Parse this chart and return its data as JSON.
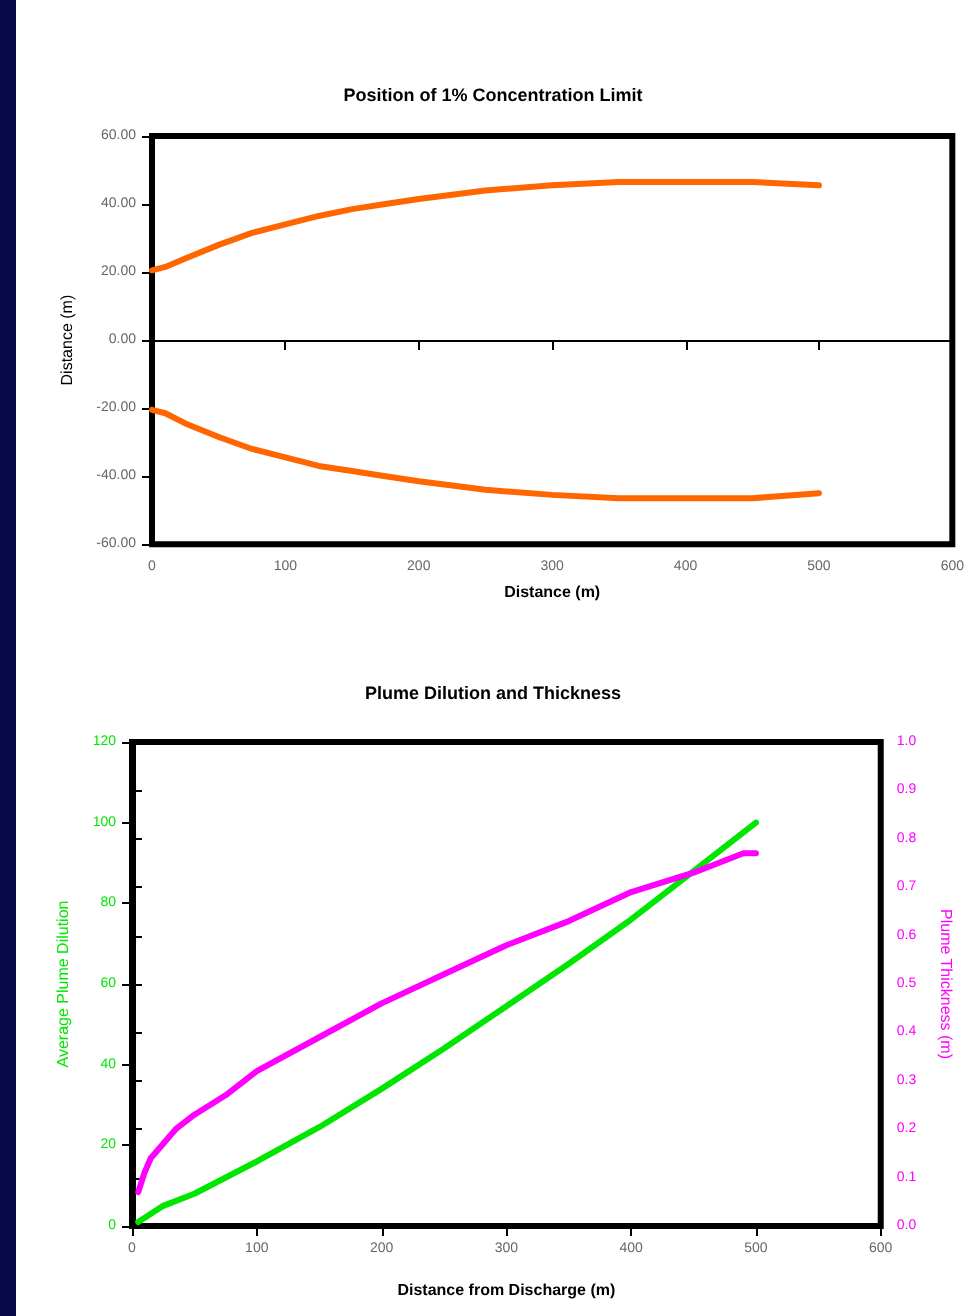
{
  "chart_data": [
    {
      "type": "line",
      "title": "Position of 1% Concentration Limit",
      "xlabel": "Distance (m)",
      "ylabel": "Distance (m)",
      "xlim": [
        0,
        600
      ],
      "xticks": [
        0,
        100,
        200,
        300,
        400,
        500,
        600
      ],
      "ylim": [
        -60,
        60
      ],
      "yticks": [
        {
          "value": -60,
          "label": "-60.00"
        },
        {
          "value": -40,
          "label": "-40.00"
        },
        {
          "value": -20,
          "label": "-20.00"
        },
        {
          "value": 0,
          "label": "0.00"
        },
        {
          "value": 20,
          "label": "20.00"
        },
        {
          "value": 40,
          "label": "40.00"
        },
        {
          "value": 60,
          "label": "60.00"
        }
      ],
      "line_style": "solid",
      "x": [
        0,
        10,
        25,
        50,
        75,
        100,
        125,
        150,
        175,
        200,
        250,
        300,
        350,
        400,
        450,
        500
      ],
      "series": [
        {
          "color": "#ff6600",
          "values": [
            20.5,
            21.5,
            24,
            28,
            31.5,
            34,
            36.5,
            38.5,
            40,
            41.5,
            44,
            45.5,
            46.5,
            46.5,
            46.5,
            45.5
          ]
        },
        {
          "color": "#ff6600",
          "values": [
            -20.5,
            -21.5,
            -24.5,
            -28.5,
            -32,
            -34.5,
            -37,
            -38.5,
            -40,
            -41.5,
            -44,
            -45.5,
            -46.5,
            -46.5,
            -46.5,
            -45
          ]
        }
      ]
    },
    {
      "type": "line",
      "title": "Plume Dilution and Thickness",
      "xlabel": "Distance from Discharge (m)",
      "ylabel": "Average Plume Dilution",
      "y2label": "Plume Thickness (m)",
      "xlim": [
        0,
        600
      ],
      "xticks": [
        0,
        100,
        200,
        300,
        400,
        500,
        600
      ],
      "ylim": [
        0,
        120
      ],
      "yticks": [
        0,
        20,
        40,
        60,
        80,
        100,
        120
      ],
      "y2lim": [
        0,
        1
      ],
      "y2ticks": [
        {
          "value": 0,
          "label": "0.0"
        },
        {
          "value": 0.1,
          "label": "0.1"
        },
        {
          "value": 0.2,
          "label": "0.2"
        },
        {
          "value": 0.3,
          "label": "0.3"
        },
        {
          "value": 0.4,
          "label": "0.4"
        },
        {
          "value": 0.5,
          "label": "0.5"
        },
        {
          "value": 0.6,
          "label": "0.6"
        },
        {
          "value": 0.7,
          "label": "0.7"
        },
        {
          "value": 0.8,
          "label": "0.8"
        },
        {
          "value": 0.9,
          "label": "0.9"
        },
        {
          "value": 1,
          "label": "1.0"
        }
      ],
      "line_style": "solid",
      "series": [
        {
          "color": "#00e600",
          "x": [
            5,
            25,
            50,
            100,
            150,
            200,
            250,
            300,
            350,
            400,
            450,
            500
          ],
          "values": [
            1,
            5,
            8,
            16,
            24.5,
            34,
            44,
            54.5,
            65,
            76,
            88,
            100
          ]
        },
        {
          "color": "#ff00ff",
          "axis": "y2",
          "x": [
            5,
            10,
            15,
            25,
            35,
            50,
            75,
            100,
            150,
            200,
            250,
            300,
            350,
            400,
            450,
            490,
            500
          ],
          "values": [
            0.07,
            0.11,
            0.14,
            0.17,
            0.2,
            0.23,
            0.27,
            0.32,
            0.39,
            0.46,
            0.52,
            0.58,
            0.63,
            0.69,
            0.73,
            0.77,
            0.77
          ]
        }
      ]
    }
  ]
}
